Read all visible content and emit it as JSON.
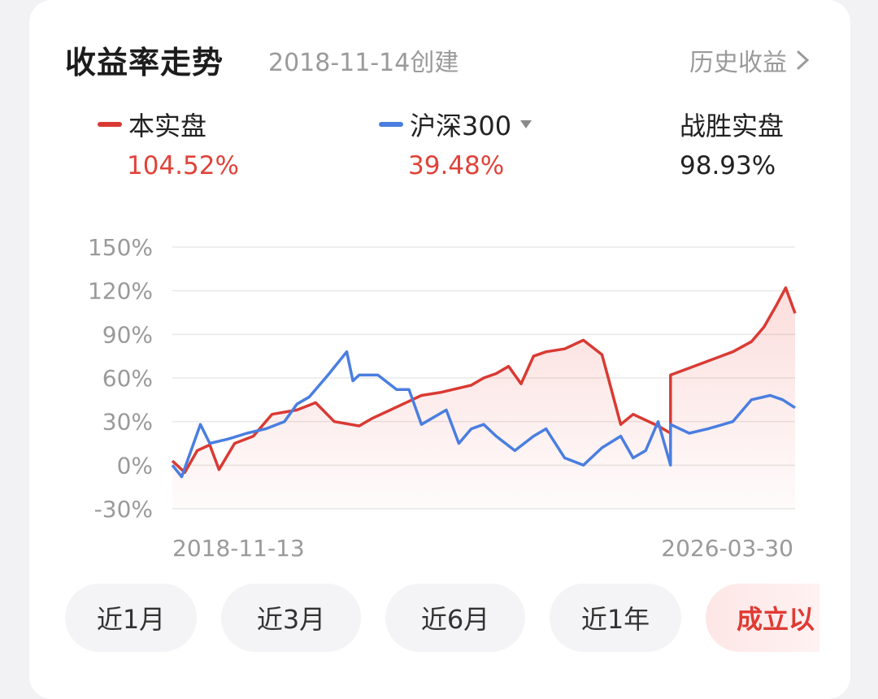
{
  "header": {
    "title": "收益率走势",
    "created": "2018-11-14创建",
    "history_link": "历史收益"
  },
  "legend": {
    "portfolio": {
      "label": "本实盘",
      "value": "104.52%",
      "color": "#d93a33"
    },
    "benchmark": {
      "label": "沪深300",
      "value": "39.48%",
      "color": "#4a7ee0"
    },
    "beat": {
      "label": "战胜实盘",
      "value": "98.93%"
    }
  },
  "colors": {
    "value_red": "#e0433a",
    "text_dark": "#222222",
    "grid": "#e8e8e8"
  },
  "tabs": [
    "近1月",
    "近3月",
    "近6月",
    "近1年",
    "成立以"
  ],
  "active_tab": "成立以",
  "chart_data": {
    "type": "line",
    "x_start": "2018-11-13",
    "x_end": "2026-03-30",
    "yticks": [
      "150%",
      "120%",
      "90%",
      "60%",
      "30%",
      "0%",
      "-30%"
    ],
    "ylim": [
      -30,
      150
    ],
    "grid": true,
    "area_fill": "portfolio",
    "series": [
      {
        "name": "本实盘",
        "color": "#d93a33",
        "x": [
          0,
          0.02,
          0.04,
          0.06,
          0.075,
          0.1,
          0.13,
          0.16,
          0.2,
          0.23,
          0.26,
          0.3,
          0.32,
          0.36,
          0.4,
          0.43,
          0.45,
          0.48,
          0.5,
          0.52,
          0.54,
          0.56,
          0.58,
          0.6,
          0.63,
          0.66,
          0.69,
          0.7,
          0.72,
          0.74,
          0.75,
          0.78,
          0.8,
          0.8,
          0.85,
          0.9,
          0.93,
          0.95,
          0.97,
          0.985,
          1
        ],
        "values": [
          3,
          -5,
          10,
          14,
          -3,
          15,
          20,
          35,
          38,
          43,
          30,
          27,
          32,
          40,
          48,
          50,
          52,
          55,
          60,
          63,
          68,
          56,
          75,
          78,
          80,
          86,
          76,
          60,
          28,
          35,
          33,
          27,
          22,
          62,
          70,
          78,
          85,
          95,
          110,
          122,
          104.52
        ]
      },
      {
        "name": "沪深300",
        "color": "#4a7ee0",
        "x": [
          0,
          0.015,
          0.03,
          0.045,
          0.06,
          0.09,
          0.12,
          0.15,
          0.18,
          0.2,
          0.22,
          0.25,
          0.28,
          0.29,
          0.3,
          0.33,
          0.36,
          0.38,
          0.4,
          0.44,
          0.46,
          0.48,
          0.5,
          0.52,
          0.55,
          0.58,
          0.6,
          0.63,
          0.66,
          0.69,
          0.72,
          0.74,
          0.76,
          0.78,
          0.8,
          0.8,
          0.83,
          0.86,
          0.9,
          0.93,
          0.96,
          0.98,
          1
        ],
        "values": [
          0,
          -8,
          10,
          28,
          15,
          18,
          22,
          25,
          30,
          42,
          47,
          62,
          78,
          58,
          62,
          62,
          52,
          52,
          28,
          38,
          15,
          25,
          28,
          20,
          10,
          20,
          25,
          5,
          0,
          12,
          20,
          5,
          10,
          30,
          0,
          28,
          22,
          25,
          30,
          45,
          48,
          45,
          39.48
        ]
      }
    ]
  }
}
